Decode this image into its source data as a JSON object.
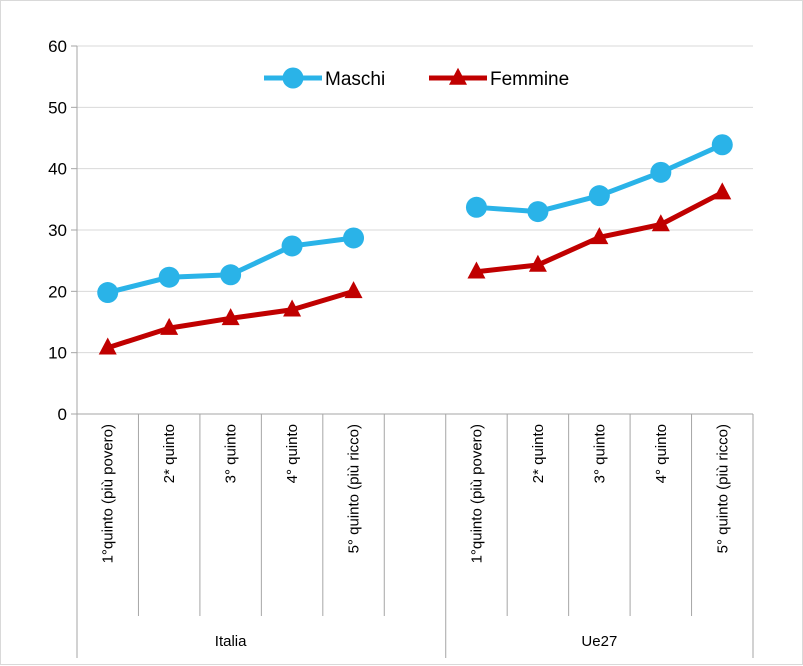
{
  "chart_data": {
    "type": "line",
    "title": "",
    "xlabel": "",
    "ylabel": "",
    "ylim": [
      0,
      60
    ],
    "yticks": [
      0,
      10,
      20,
      30,
      40,
      50,
      60
    ],
    "grid": true,
    "legend_position": "top-center",
    "groups": [
      {
        "name": "Italia",
        "categories": [
          "1°quinto (più povero)",
          "2* quinto",
          "3° quinto",
          "4° quinto",
          "5° quinto (più ricco)"
        ]
      },
      {
        "name": "Ue27",
        "categories": [
          "1°quinto (più povero)",
          "2* quinto",
          "3° quinto",
          "4° quinto",
          "5° quinto (più ricco)"
        ]
      }
    ],
    "series": [
      {
        "name": "Maschi",
        "color": "#2ab3e8",
        "marker": "circle",
        "values": {
          "Italia": [
            19.8,
            22.3,
            22.7,
            27.4,
            28.7
          ],
          "Ue27": [
            33.7,
            33.0,
            35.6,
            39.4,
            43.9
          ]
        }
      },
      {
        "name": "Femmine",
        "color": "#c00000",
        "marker": "triangle",
        "values": {
          "Italia": [
            10.8,
            14.0,
            15.6,
            17.0,
            20.0
          ],
          "Ue27": [
            23.2,
            24.3,
            28.8,
            30.9,
            36.1
          ]
        }
      }
    ]
  }
}
